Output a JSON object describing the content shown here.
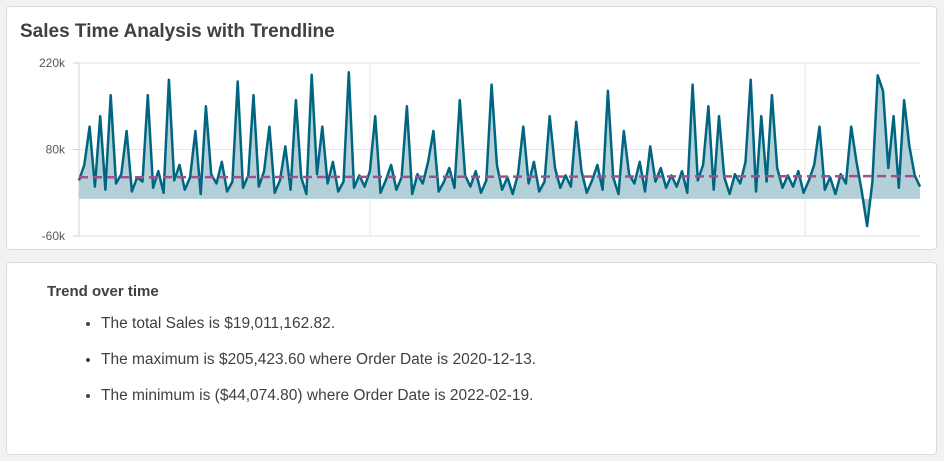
{
  "chart_data": {
    "type": "area",
    "title": "Sales Time Analysis with Trendline",
    "xlabel": "",
    "ylabel": "",
    "ylim": [
      -60000,
      220000
    ],
    "yticks": [
      "220k",
      "80k",
      "-60k"
    ],
    "ytick_values": [
      220000,
      80000,
      -60000
    ],
    "grid": true,
    "colors": {
      "line": "#006580",
      "area": "#b3d0d9",
      "trend": "#a0508c"
    },
    "values_k": [
      30,
      55,
      117,
      20,
      134,
      15,
      168,
      25,
      40,
      110,
      12,
      35,
      28,
      168,
      18,
      45,
      10,
      193,
      30,
      55,
      15,
      35,
      110,
      8,
      150,
      40,
      25,
      60,
      12,
      28,
      190,
      18,
      38,
      168,
      20,
      45,
      117,
      10,
      30,
      85,
      15,
      160,
      35,
      8,
      201,
      40,
      117,
      25,
      60,
      12,
      28,
      205,
      18,
      38,
      20,
      45,
      134,
      10,
      30,
      55,
      15,
      35,
      150,
      8,
      40,
      25,
      60,
      110,
      12,
      28,
      50,
      18,
      160,
      38,
      20,
      45,
      10,
      30,
      185,
      55,
      15,
      35,
      8,
      40,
      117,
      25,
      60,
      12,
      28,
      134,
      50,
      18,
      38,
      20,
      125,
      45,
      10,
      30,
      55,
      15,
      175,
      35,
      8,
      110,
      40,
      25,
      60,
      12,
      85,
      28,
      50,
      18,
      38,
      20,
      45,
      10,
      185,
      30,
      55,
      150,
      15,
      134,
      35,
      8,
      40,
      25,
      60,
      193,
      12,
      134,
      28,
      168,
      50,
      18,
      38,
      20,
      45,
      10,
      30,
      55,
      117,
      15,
      35,
      8,
      40,
      25,
      117,
      60,
      12,
      -44,
      28,
      200,
      175,
      50,
      134,
      18,
      160,
      85,
      38,
      20
    ],
    "trendline_k": [
      35,
      37
    ]
  },
  "summary": {
    "heading": "Trend over time",
    "items": [
      "The total Sales is $19,011,162.82.",
      "The maximum is $205,423.60 where Order Date is 2020-12-13.",
      "The minimum is ($44,074.80) where Order Date is 2022-02-19."
    ]
  }
}
